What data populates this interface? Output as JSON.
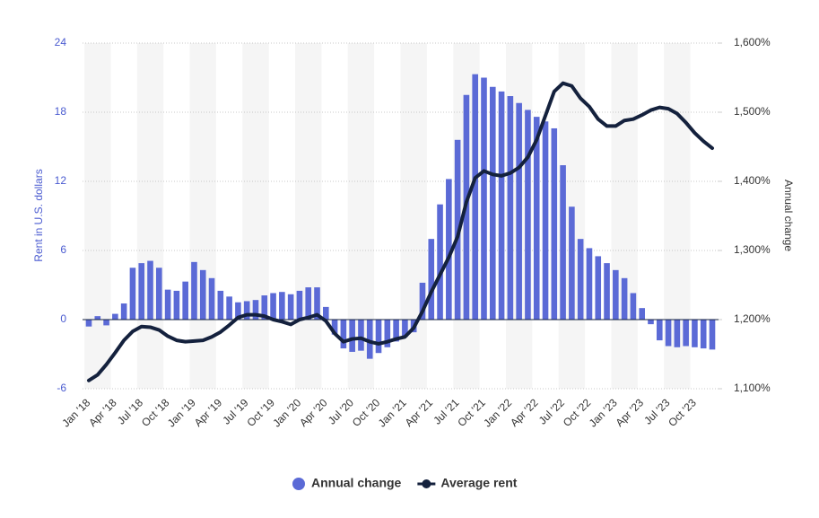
{
  "chart_data": {
    "type": "combo",
    "y_label": "Rent in U.S. dollars",
    "y2_label": "Annual change",
    "categories": [
      "Jan '18",
      null,
      null,
      "Apr '18",
      null,
      null,
      "Jul '18",
      null,
      null,
      "Oct '18",
      null,
      null,
      "Jan '19",
      null,
      null,
      "Apr '19",
      null,
      null,
      "Jul '19",
      null,
      null,
      "Oct '19",
      null,
      null,
      "Jan '20",
      null,
      null,
      "Apr '20",
      null,
      null,
      "Jul '20",
      null,
      null,
      "Oct '20",
      null,
      null,
      "Jan '21",
      null,
      null,
      "Apr '21",
      null,
      null,
      "Jul '21",
      null,
      null,
      "Oct '21",
      null,
      null,
      "Jan '22",
      null,
      null,
      "Apr '22",
      null,
      null,
      "Jul '22",
      null,
      null,
      "Oct '22",
      null,
      null,
      "Jan '23",
      null,
      null,
      "Apr '23",
      null,
      null,
      "Jul '23",
      null,
      null,
      "Oct '23",
      null,
      null
    ],
    "series": [
      {
        "name": "Annual change",
        "type": "bar",
        "color": "#5b6ad6",
        "values": [
          -0.6,
          0.3,
          -0.5,
          0.5,
          1.4,
          4.5,
          4.9,
          5.1,
          4.5,
          2.6,
          2.5,
          3.3,
          5.0,
          4.3,
          3.6,
          2.5,
          2.0,
          1.5,
          1.6,
          1.7,
          2.1,
          2.3,
          2.4,
          2.2,
          2.5,
          2.8,
          2.8,
          1.1,
          -1.3,
          -2.5,
          -2.8,
          -2.7,
          -3.4,
          -2.9,
          -2.4,
          -1.9,
          -1.5,
          -1.1,
          3.2,
          7.0,
          10.0,
          12.2,
          15.6,
          19.5,
          21.3,
          21.0,
          20.2,
          19.8,
          19.4,
          18.8,
          18.2,
          17.6,
          17.2,
          16.6,
          13.4,
          9.8,
          7.0,
          6.2,
          5.5,
          4.9,
          4.3,
          3.6,
          2.3,
          1.0,
          -0.4,
          -1.8,
          -2.3,
          -2.4,
          -2.3,
          -2.4,
          -2.5,
          -2.6
        ]
      },
      {
        "name": "Average rent",
        "type": "line",
        "axis": "y2",
        "color": "#14213d",
        "values": [
          1112,
          1120,
          1135,
          1152,
          1170,
          1183,
          1190,
          1189,
          1185,
          1176,
          1170,
          1168,
          1169,
          1170,
          1175,
          1182,
          1192,
          1203,
          1207,
          1207,
          1205,
          1200,
          1197,
          1193,
          1200,
          1203,
          1207,
          1198,
          1180,
          1168,
          1172,
          1173,
          1168,
          1165,
          1168,
          1172,
          1175,
          1188,
          1212,
          1240,
          1265,
          1290,
          1320,
          1370,
          1405,
          1415,
          1410,
          1408,
          1412,
          1420,
          1435,
          1460,
          1495,
          1530,
          1542,
          1538,
          1520,
          1508,
          1490,
          1480,
          1480,
          1488,
          1490,
          1496,
          1503,
          1507,
          1505,
          1498,
          1485,
          1470,
          1458,
          1448
        ]
      }
    ],
    "ylim": [
      -6,
      24
    ],
    "yticks": [
      -6,
      0,
      6,
      12,
      18,
      24
    ],
    "y2lim": [
      1100,
      1600
    ],
    "y2ticks": [
      {
        "value": 1100,
        "label": "1,100%"
      },
      {
        "value": 1200,
        "label": "1,200%"
      },
      {
        "value": 1300,
        "label": "1,300%"
      },
      {
        "value": 1400,
        "label": "1,400%"
      },
      {
        "value": 1500,
        "label": "1,500%"
      },
      {
        "value": 1600,
        "label": "1,600%"
      }
    ],
    "grid": true,
    "legend": "bottom"
  }
}
